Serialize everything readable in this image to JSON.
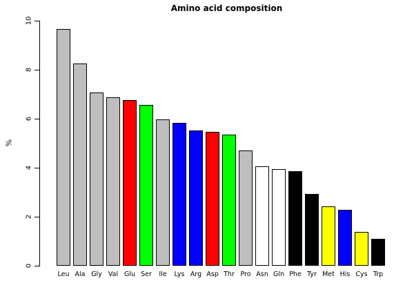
{
  "chart_data": {
    "type": "bar",
    "title": "Amino acid composition",
    "xlabel": "",
    "ylabel": "%",
    "ylim": [
      0,
      10
    ],
    "yticks": [
      0,
      2,
      4,
      6,
      8,
      10
    ],
    "grid": false,
    "legend": null,
    "categories": [
      "Leu",
      "Ala",
      "Gly",
      "Val",
      "Glu",
      "Ser",
      "Ile",
      "Lys",
      "Arg",
      "Asp",
      "Thr",
      "Pro",
      "Asn",
      "Gln",
      "Phe",
      "Tyr",
      "Met",
      "His",
      "Cys",
      "Trp"
    ],
    "values": [
      9.66,
      8.26,
      7.07,
      6.87,
      6.75,
      6.56,
      5.97,
      5.84,
      5.53,
      5.46,
      5.34,
      4.71,
      4.06,
      3.93,
      3.86,
      2.92,
      2.41,
      2.27,
      1.37,
      1.09
    ],
    "bar_colors": [
      "#BEBEBE",
      "#BEBEBE",
      "#BEBEBE",
      "#BEBEBE",
      "#FF0000",
      "#00FF00",
      "#BEBEBE",
      "#0000FF",
      "#0000FF",
      "#FF0000",
      "#00FF00",
      "#BEBEBE",
      "#FFFFFF",
      "#FFFFFF",
      "#000000",
      "#000000",
      "#FFFF00",
      "#0000FF",
      "#FFFF00",
      "#000000"
    ],
    "bar_border_color": "#000000",
    "axis_color": "#000000",
    "background_color": "#FFFFFF"
  }
}
